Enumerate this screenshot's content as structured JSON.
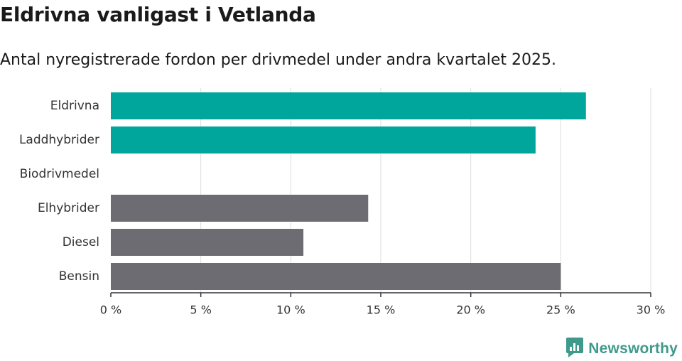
{
  "header": {
    "title": "Eldrivna vanligast i Vetlanda",
    "subtitle": "Antal nyregistrerade fordon per drivmedel under andra kvartalet 2025."
  },
  "brand": {
    "name": "Newsworthy",
    "color": "#3f9a8c"
  },
  "colors": {
    "highlight": "#00a69c",
    "default": "#6d6c73",
    "grid": "#dddddd",
    "axis": "#333333"
  },
  "chart_data": {
    "type": "bar",
    "orientation": "horizontal",
    "categories": [
      "Eldrivna",
      "Laddhybrider",
      "Biodrivmedel",
      "Elhybrider",
      "Diesel",
      "Bensin"
    ],
    "values": [
      26.4,
      23.6,
      0,
      14.3,
      10.7,
      25.0
    ],
    "highlighted": [
      true,
      true,
      false,
      false,
      false,
      false
    ],
    "xlim": [
      0,
      30
    ],
    "x_ticks": [
      0,
      5,
      10,
      15,
      20,
      25,
      30
    ],
    "x_tick_labels": [
      "0 %",
      "5 %",
      "10 %",
      "15 %",
      "20 %",
      "25 %",
      "30 %"
    ],
    "grid": true
  }
}
